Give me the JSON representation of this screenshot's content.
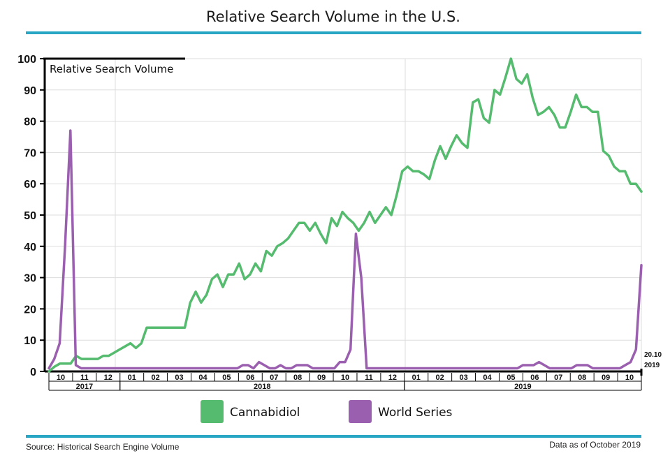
{
  "chart_data": {
    "type": "line",
    "title": "Relative Search Volume in the U.S.",
    "ylabel": "Relative Search Volume",
    "ylim": [
      0,
      100
    ],
    "yticks": [
      0,
      10,
      20,
      30,
      40,
      50,
      60,
      70,
      80,
      90,
      100
    ],
    "grid": true,
    "legend_position": "bottom",
    "months": [
      {
        "label": "10",
        "year": "2017"
      },
      {
        "label": "11",
        "year": "2017"
      },
      {
        "label": "12",
        "year": "2017"
      },
      {
        "label": "01",
        "year": "2018"
      },
      {
        "label": "02",
        "year": "2018"
      },
      {
        "label": "03",
        "year": "2018"
      },
      {
        "label": "04",
        "year": "2018"
      },
      {
        "label": "05",
        "year": "2018"
      },
      {
        "label": "06",
        "year": "2018"
      },
      {
        "label": "07",
        "year": "2018"
      },
      {
        "label": "08",
        "year": "2018"
      },
      {
        "label": "09",
        "year": "2018"
      },
      {
        "label": "10",
        "year": "2018"
      },
      {
        "label": "11",
        "year": "2018"
      },
      {
        "label": "12",
        "year": "2018"
      },
      {
        "label": "01",
        "year": "2019"
      },
      {
        "label": "02",
        "year": "2019"
      },
      {
        "label": "03",
        "year": "2019"
      },
      {
        "label": "04",
        "year": "2019"
      },
      {
        "label": "05",
        "year": "2019"
      },
      {
        "label": "06",
        "year": "2019"
      },
      {
        "label": "07",
        "year": "2019"
      },
      {
        "label": "08",
        "year": "2019"
      },
      {
        "label": "09",
        "year": "2019"
      },
      {
        "label": "10",
        "year": "2019"
      }
    ],
    "years": [
      {
        "label": "2017",
        "first": 0,
        "last": 2
      },
      {
        "label": "2018",
        "first": 3,
        "last": 14
      },
      {
        "label": "2019",
        "first": 15,
        "last": 24
      }
    ],
    "series": [
      {
        "name": "Cannabidiol",
        "color": "#55bb6e",
        "values": [
          0,
          1.5,
          2.5,
          2.5,
          2.5,
          5,
          4,
          4,
          4,
          4,
          5,
          5,
          6,
          7,
          8,
          9,
          7.5,
          9,
          14,
          14,
          14,
          14,
          14,
          14,
          14,
          14,
          22,
          25.5,
          22,
          24.5,
          29.5,
          31,
          27,
          31,
          31,
          34.5,
          29.5,
          31,
          34.5,
          32,
          38.5,
          37,
          40,
          41,
          42.5,
          45,
          47.5,
          47.5,
          45,
          47.5,
          44,
          41,
          49,
          46.5,
          51,
          49,
          47.5,
          45,
          47.5,
          51,
          47.5,
          50,
          52.5,
          50,
          56.5,
          64,
          65.5,
          64,
          64,
          63,
          61.5,
          67.5,
          72,
          68,
          72,
          75.5,
          73,
          71.5,
          86,
          87,
          81,
          79.5,
          90,
          88.5,
          94,
          100,
          93.5,
          92,
          95,
          87.5,
          82,
          83,
          84.5,
          82,
          78,
          78,
          83,
          88.5,
          84.5,
          84.5,
          83,
          83,
          70.5,
          69,
          65.5,
          64,
          64,
          60,
          60,
          57.5
        ]
      },
      {
        "name": "World Series",
        "color": "#9b5faf",
        "values": [
          1,
          4,
          9,
          40,
          77,
          2,
          1,
          1,
          1,
          1,
          1,
          1,
          1,
          1,
          1,
          1,
          1,
          1,
          1,
          1,
          1,
          1,
          1,
          1,
          1,
          1,
          1,
          1,
          1,
          1,
          1,
          1,
          1,
          1,
          1,
          1,
          2,
          2,
          1,
          3,
          2,
          1,
          1,
          2,
          1,
          1,
          2,
          2,
          2,
          1,
          1,
          1,
          1,
          1,
          3,
          3,
          7,
          44,
          30,
          1,
          1,
          1,
          1,
          1,
          1,
          1,
          1,
          1,
          1,
          1,
          1,
          1,
          1,
          1,
          1,
          1,
          1,
          1,
          1,
          1,
          1,
          1,
          1,
          1,
          1,
          1,
          1,
          1,
          2,
          2,
          2,
          3,
          2,
          1,
          1,
          1,
          1,
          1,
          2,
          2,
          2,
          1,
          1,
          1,
          1,
          1,
          1,
          2,
          3,
          7,
          34
        ]
      }
    ],
    "end_annotation": [
      "20.10",
      "2019"
    ]
  },
  "footer": {
    "source": "Source: Historical Search Engine Volume",
    "data_as_of": "Data as of October 2019"
  },
  "colors": {
    "accent_bar": "#2aa6c5",
    "grid": "#dddddd",
    "axis": "#000000"
  }
}
